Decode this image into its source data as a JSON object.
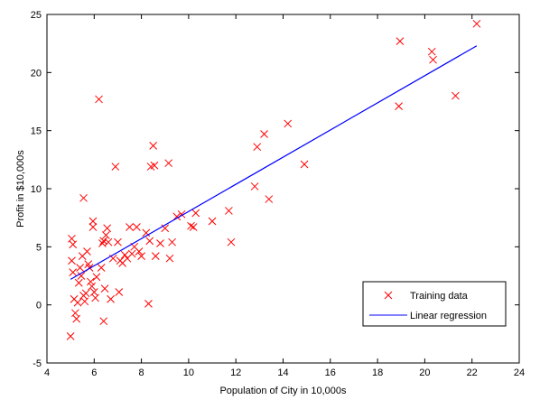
{
  "chart_data": {
    "type": "scatter",
    "title": "",
    "xlabel": "Population of City in 10,000s",
    "ylabel": "Profit in $10,000s",
    "xlim": [
      4,
      24
    ],
    "ylim": [
      -5,
      25
    ],
    "x_ticks": [
      4,
      6,
      8,
      10,
      12,
      14,
      16,
      18,
      20,
      22,
      24
    ],
    "y_ticks": [
      -5,
      0,
      5,
      10,
      15,
      20,
      25
    ],
    "grid": false,
    "legend_position": "bottom-right",
    "series": [
      {
        "name": "Training data",
        "marker": "x",
        "color": "#ff0000",
        "points": [
          [
            5.0,
            -2.7
          ],
          [
            5.05,
            5.7
          ],
          [
            5.1,
            5.2
          ],
          [
            5.05,
            3.8
          ],
          [
            5.1,
            2.8
          ],
          [
            5.15,
            0.5
          ],
          [
            5.2,
            -0.7
          ],
          [
            5.25,
            -1.2
          ],
          [
            5.3,
            0.2
          ],
          [
            5.35,
            1.9
          ],
          [
            5.4,
            3.2
          ],
          [
            5.45,
            2.5
          ],
          [
            5.5,
            4.2
          ],
          [
            5.55,
            9.2
          ],
          [
            5.55,
            0.8
          ],
          [
            5.6,
            0.3
          ],
          [
            5.65,
            1.0
          ],
          [
            5.7,
            4.6
          ],
          [
            5.75,
            3.5
          ],
          [
            5.8,
            3.2
          ],
          [
            5.85,
            2.0
          ],
          [
            5.9,
            1.6
          ],
          [
            5.95,
            7.2
          ],
          [
            5.95,
            6.7
          ],
          [
            6.0,
            1.1
          ],
          [
            6.05,
            0.6
          ],
          [
            6.1,
            2.4
          ],
          [
            6.2,
            17.7
          ],
          [
            6.3,
            3.2
          ],
          [
            6.35,
            5.3
          ],
          [
            6.4,
            -1.4
          ],
          [
            6.4,
            5.5
          ],
          [
            6.45,
            1.4
          ],
          [
            6.5,
            6.0
          ],
          [
            6.55,
            6.6
          ],
          [
            6.6,
            5.4
          ],
          [
            6.7,
            0.5
          ],
          [
            6.8,
            4.0
          ],
          [
            6.9,
            11.9
          ],
          [
            7.0,
            5.4
          ],
          [
            7.05,
            1.1
          ],
          [
            7.1,
            3.8
          ],
          [
            7.2,
            3.6
          ],
          [
            7.3,
            4.3
          ],
          [
            7.4,
            4.0
          ],
          [
            7.5,
            6.7
          ],
          [
            7.6,
            4.4
          ],
          [
            7.7,
            5.0
          ],
          [
            7.8,
            6.7
          ],
          [
            7.9,
            4.6
          ],
          [
            8.0,
            4.2
          ],
          [
            8.2,
            6.2
          ],
          [
            8.3,
            0.1
          ],
          [
            8.35,
            5.5
          ],
          [
            8.4,
            11.9
          ],
          [
            8.5,
            13.7
          ],
          [
            8.55,
            12.0
          ],
          [
            8.6,
            4.2
          ],
          [
            8.8,
            5.3
          ],
          [
            9.0,
            6.6
          ],
          [
            9.15,
            12.2
          ],
          [
            9.2,
            4.0
          ],
          [
            9.3,
            5.4
          ],
          [
            9.5,
            7.6
          ],
          [
            9.7,
            7.8
          ],
          [
            10.1,
            6.8
          ],
          [
            10.2,
            6.7
          ],
          [
            10.3,
            7.9
          ],
          [
            11.0,
            7.2
          ],
          [
            11.7,
            8.1
          ],
          [
            11.8,
            5.4
          ],
          [
            12.8,
            10.2
          ],
          [
            12.9,
            13.6
          ],
          [
            13.2,
            14.7
          ],
          [
            13.4,
            9.1
          ],
          [
            14.2,
            15.6
          ],
          [
            14.9,
            12.1
          ],
          [
            18.9,
            17.1
          ],
          [
            18.95,
            22.7
          ],
          [
            20.3,
            21.8
          ],
          [
            20.35,
            21.1
          ],
          [
            21.3,
            18.0
          ],
          [
            22.2,
            24.2
          ]
        ]
      },
      {
        "name": "Linear regression",
        "marker": "line",
        "color": "#0000ff",
        "points": [
          [
            5.0,
            2.2
          ],
          [
            22.2,
            22.3
          ]
        ]
      }
    ]
  }
}
